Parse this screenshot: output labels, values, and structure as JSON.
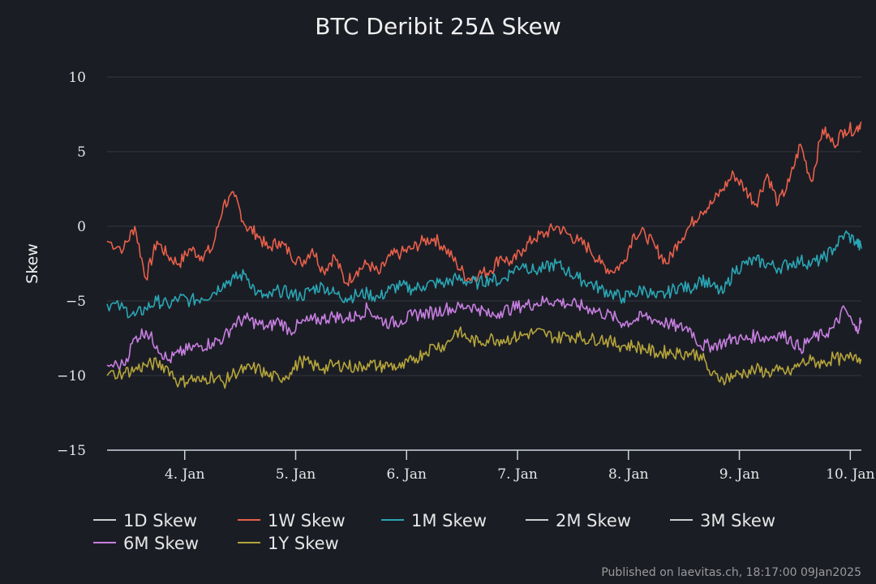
{
  "chart_data": {
    "type": "line",
    "title": "BTC Deribit 25Δ Skew",
    "ylabel": "Skew",
    "xlabel": "",
    "ylim": [
      -15,
      10
    ],
    "yticks": [
      10,
      5,
      0,
      -5,
      -10,
      -15
    ],
    "ytick_labels": [
      "10",
      "5",
      "0",
      "−5",
      "−10",
      "−15"
    ],
    "xlim": [
      3.3,
      10.1
    ],
    "xticks": [
      {
        "value": 4,
        "label": "4. Jan"
      },
      {
        "value": 5,
        "label": "5. Jan"
      },
      {
        "value": 6,
        "label": "6. Jan"
      },
      {
        "value": 7,
        "label": "7. Jan"
      },
      {
        "value": 8,
        "label": "8. Jan"
      },
      {
        "value": 9,
        "label": "9. Jan"
      },
      {
        "value": 10,
        "label": "10. Jan"
      }
    ],
    "legend_position": "bottom",
    "series": [
      {
        "name": "1D Skew",
        "color": "#cfcfcf",
        "x": [],
        "values": []
      },
      {
        "name": "1W Skew",
        "color": "#e8604a",
        "x": [
          3.3,
          3.45,
          3.55,
          3.65,
          3.75,
          3.85,
          3.95,
          4.05,
          4.15,
          4.25,
          4.35,
          4.45,
          4.55,
          4.65,
          4.75,
          4.85,
          4.95,
          5.05,
          5.15,
          5.25,
          5.35,
          5.45,
          5.55,
          5.65,
          5.75,
          5.85,
          5.95,
          6.05,
          6.15,
          6.25,
          6.35,
          6.45,
          6.55,
          6.65,
          6.75,
          6.85,
          6.95,
          7.05,
          7.15,
          7.25,
          7.35,
          7.45,
          7.55,
          7.65,
          7.75,
          7.85,
          7.95,
          8.05,
          8.15,
          8.25,
          8.35,
          8.45,
          8.55,
          8.65,
          8.75,
          8.85,
          8.95,
          9.05,
          9.15,
          9.25,
          9.35,
          9.45,
          9.55,
          9.65,
          9.75,
          9.85,
          9.95,
          10.05,
          10.1
        ],
        "values": [
          -1.0,
          -1.5,
          0.0,
          -3.5,
          -1.0,
          -2.0,
          -2.5,
          -1.5,
          -2.0,
          -1.5,
          1.5,
          2.0,
          0.0,
          -0.5,
          -1.5,
          -1.0,
          -1.8,
          -2.5,
          -1.5,
          -3.0,
          -2.0,
          -3.8,
          -3.0,
          -2.5,
          -3.2,
          -2.0,
          -1.8,
          -1.5,
          -1.0,
          -0.8,
          -1.5,
          -2.5,
          -3.5,
          -3.2,
          -3.0,
          -2.0,
          -2.5,
          -1.5,
          -0.8,
          -0.5,
          0.0,
          -0.5,
          -1.0,
          -1.5,
          -2.5,
          -3.0,
          -2.5,
          -0.5,
          -0.5,
          -1.5,
          -2.5,
          -1.0,
          0.0,
          1.0,
          1.5,
          2.5,
          3.5,
          2.5,
          1.5,
          3.5,
          1.5,
          3.0,
          5.5,
          3.0,
          6.5,
          5.5,
          6.5,
          6.5,
          7.0
        ]
      },
      {
        "name": "1M Skew",
        "color": "#2aa6b4",
        "x": [
          3.3,
          3.45,
          3.55,
          3.65,
          3.75,
          3.85,
          3.95,
          4.05,
          4.15,
          4.25,
          4.35,
          4.45,
          4.55,
          4.65,
          4.75,
          4.85,
          4.95,
          5.05,
          5.15,
          5.25,
          5.35,
          5.45,
          5.55,
          5.65,
          5.75,
          5.85,
          5.95,
          6.05,
          6.15,
          6.25,
          6.35,
          6.45,
          6.55,
          6.65,
          6.75,
          6.85,
          6.95,
          7.05,
          7.15,
          7.25,
          7.35,
          7.45,
          7.55,
          7.65,
          7.75,
          7.85,
          7.95,
          8.05,
          8.15,
          8.25,
          8.35,
          8.45,
          8.55,
          8.65,
          8.75,
          8.85,
          8.95,
          9.05,
          9.15,
          9.25,
          9.35,
          9.45,
          9.55,
          9.65,
          9.75,
          9.85,
          9.95,
          10.05,
          10.1
        ],
        "values": [
          -5.2,
          -5.5,
          -6.0,
          -5.5,
          -5.0,
          -5.3,
          -4.8,
          -5.0,
          -4.8,
          -4.5,
          -3.8,
          -3.5,
          -3.2,
          -4.5,
          -4.8,
          -4.3,
          -4.5,
          -4.7,
          -4.2,
          -4.0,
          -4.5,
          -4.8,
          -4.6,
          -4.5,
          -4.8,
          -4.2,
          -4.0,
          -4.2,
          -4.0,
          -3.8,
          -3.8,
          -3.5,
          -3.7,
          -3.8,
          -3.5,
          -3.7,
          -3.0,
          -2.5,
          -3.0,
          -2.8,
          -2.5,
          -3.0,
          -3.5,
          -3.8,
          -4.2,
          -4.5,
          -4.8,
          -4.5,
          -4.2,
          -4.8,
          -4.5,
          -4.0,
          -4.2,
          -3.5,
          -4.0,
          -4.5,
          -3.0,
          -2.5,
          -2.3,
          -2.5,
          -2.8,
          -2.5,
          -2.3,
          -2.5,
          -2.2,
          -1.5,
          -0.5,
          -1.0,
          -1.5
        ]
      },
      {
        "name": "2M Skew",
        "color": "#cfcfcf",
        "x": [],
        "values": []
      },
      {
        "name": "3M Skew",
        "color": "#cfcfcf",
        "x": [],
        "values": []
      },
      {
        "name": "6M Skew",
        "color": "#c77fe0",
        "x": [
          3.3,
          3.45,
          3.55,
          3.65,
          3.75,
          3.85,
          3.95,
          4.05,
          4.15,
          4.25,
          4.35,
          4.45,
          4.55,
          4.65,
          4.75,
          4.85,
          4.95,
          5.05,
          5.15,
          5.25,
          5.35,
          5.45,
          5.55,
          5.65,
          5.75,
          5.85,
          5.95,
          6.05,
          6.15,
          6.25,
          6.35,
          6.45,
          6.55,
          6.65,
          6.75,
          6.85,
          6.95,
          7.05,
          7.15,
          7.25,
          7.35,
          7.45,
          7.55,
          7.65,
          7.75,
          7.85,
          7.95,
          8.05,
          8.15,
          8.25,
          8.35,
          8.45,
          8.55,
          8.65,
          8.75,
          8.85,
          8.95,
          9.05,
          9.15,
          9.25,
          9.35,
          9.45,
          9.55,
          9.65,
          9.75,
          9.85,
          9.95,
          10.05,
          10.1
        ],
        "values": [
          -9.3,
          -9.3,
          -7.5,
          -7.0,
          -8.0,
          -9.0,
          -8.5,
          -8.2,
          -8.0,
          -7.8,
          -7.5,
          -6.5,
          -6.2,
          -6.5,
          -6.8,
          -6.3,
          -7.0,
          -6.5,
          -6.3,
          -6.2,
          -6.0,
          -6.2,
          -6.0,
          -5.5,
          -6.2,
          -6.5,
          -6.3,
          -6.0,
          -5.8,
          -5.8,
          -5.5,
          -5.5,
          -5.3,
          -5.5,
          -6.0,
          -5.7,
          -5.5,
          -5.3,
          -5.2,
          -5.0,
          -5.0,
          -5.2,
          -5.3,
          -5.5,
          -5.8,
          -6.0,
          -6.5,
          -6.3,
          -6.0,
          -6.3,
          -6.5,
          -6.8,
          -6.8,
          -8.0,
          -8.0,
          -7.8,
          -7.5,
          -7.6,
          -7.3,
          -7.5,
          -7.2,
          -7.5,
          -8.2,
          -7.5,
          -7.3,
          -6.8,
          -5.5,
          -7.0,
          -6.3
        ]
      },
      {
        "name": "1Y Skew",
        "color": "#b5a53a",
        "x": [
          3.3,
          3.45,
          3.55,
          3.65,
          3.75,
          3.85,
          3.95,
          4.05,
          4.15,
          4.25,
          4.35,
          4.45,
          4.55,
          4.65,
          4.75,
          4.85,
          4.95,
          5.05,
          5.15,
          5.25,
          5.35,
          5.45,
          5.55,
          5.65,
          5.75,
          5.85,
          5.95,
          6.05,
          6.15,
          6.25,
          6.35,
          6.45,
          6.55,
          6.65,
          6.75,
          6.85,
          6.95,
          7.05,
          7.15,
          7.25,
          7.35,
          7.45,
          7.55,
          7.65,
          7.75,
          7.85,
          7.95,
          8.05,
          8.15,
          8.25,
          8.35,
          8.45,
          8.55,
          8.65,
          8.75,
          8.85,
          8.95,
          9.05,
          9.15,
          9.25,
          9.35,
          9.45,
          9.55,
          9.65,
          9.75,
          9.85,
          9.95,
          10.05,
          10.1
        ],
        "values": [
          -10.0,
          -9.8,
          -9.6,
          -9.3,
          -9.2,
          -9.5,
          -10.5,
          -10.2,
          -10.4,
          -10.0,
          -10.5,
          -9.8,
          -9.6,
          -9.5,
          -10.0,
          -10.2,
          -9.8,
          -9.0,
          -9.3,
          -9.5,
          -9.3,
          -9.3,
          -9.5,
          -9.2,
          -9.4,
          -9.3,
          -9.5,
          -9.0,
          -8.5,
          -8.0,
          -8.0,
          -7.0,
          -7.5,
          -7.8,
          -7.5,
          -7.6,
          -7.5,
          -7.3,
          -7.1,
          -7.2,
          -7.5,
          -7.3,
          -7.4,
          -7.6,
          -7.5,
          -7.8,
          -8.0,
          -8.0,
          -8.2,
          -8.5,
          -8.4,
          -8.5,
          -8.5,
          -8.6,
          -10.0,
          -10.2,
          -10.0,
          -9.8,
          -9.6,
          -9.8,
          -9.7,
          -9.8,
          -9.2,
          -9.0,
          -9.2,
          -8.8,
          -9.0,
          -8.6,
          -9.0
        ]
      }
    ]
  },
  "footer": {
    "credit": "Published on laevitas.ch, 18:17:00 09Jan2025"
  }
}
